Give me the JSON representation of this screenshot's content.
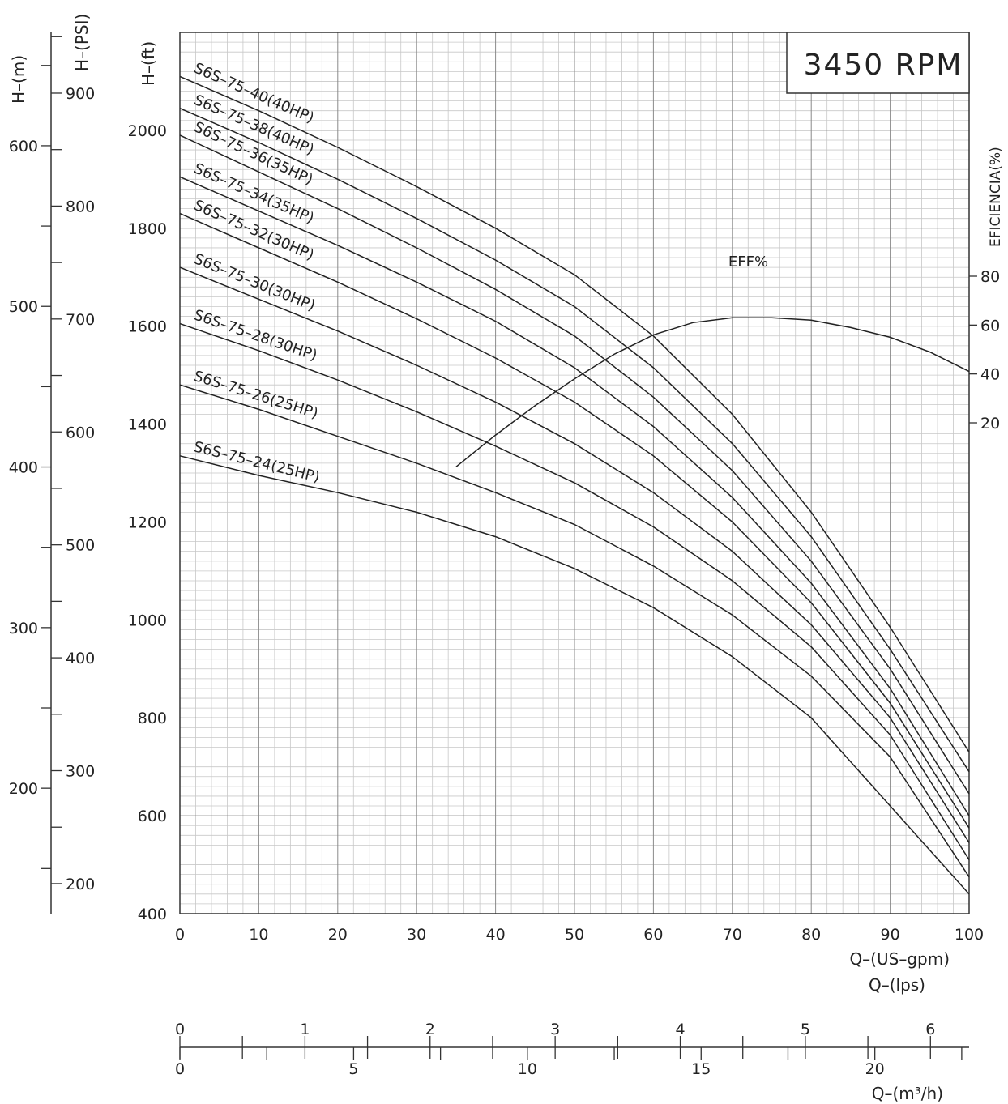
{
  "chart_data": {
    "type": "line",
    "rpm_label": "3450 RPM",
    "x_axis": {
      "label_gpm": "Q–(US–gpm)",
      "label_lps": "Q–(lps)",
      "label_m3h": "Q–(m³/h)",
      "range": [
        0,
        100
      ],
      "ticks": [
        0,
        10,
        20,
        30,
        40,
        50,
        60,
        70,
        80,
        90,
        100
      ],
      "lps_ticks": [
        0,
        1,
        2,
        3,
        4,
        5,
        6
      ],
      "m3h_ticks": [
        0,
        5,
        10,
        15,
        20
      ]
    },
    "y_axis": {
      "label_ft": "H–(ft)",
      "label_m": "H–(m)",
      "label_psi": "H–(PSI)",
      "range": [
        400,
        2200
      ],
      "ticks": [
        400,
        600,
        800,
        1000,
        1200,
        1400,
        1600,
        1800,
        2000
      ],
      "m_ticks": [
        200,
        300,
        400,
        500,
        600
      ],
      "psi_ticks": [
        200,
        300,
        400,
        500,
        600,
        700,
        800,
        900
      ]
    },
    "eff_axis": {
      "label": "EFICIENCIA(%)",
      "ticks": [
        20,
        40,
        60,
        80
      ]
    },
    "series": [
      {
        "name": "S6S–75–40(40HP)",
        "x": [
          0,
          10,
          20,
          30,
          40,
          50,
          60,
          70,
          80,
          90,
          100
        ],
        "y": [
          2110,
          2040,
          1965,
          1885,
          1800,
          1705,
          1580,
          1420,
          1220,
          985,
          730
        ]
      },
      {
        "name": "S6S–75–38(40HP)",
        "x": [
          0,
          10,
          20,
          30,
          40,
          50,
          60,
          70,
          80,
          90,
          100
        ],
        "y": [
          2045,
          1975,
          1900,
          1820,
          1735,
          1640,
          1515,
          1360,
          1170,
          940,
          690
        ]
      },
      {
        "name": "S6S–75–36(35HP)",
        "x": [
          0,
          10,
          20,
          30,
          40,
          50,
          60,
          70,
          80,
          90,
          100
        ],
        "y": [
          1990,
          1915,
          1840,
          1760,
          1675,
          1580,
          1455,
          1305,
          1120,
          900,
          645
        ]
      },
      {
        "name": "S6S–75–34(35HP)",
        "x": [
          0,
          10,
          20,
          30,
          40,
          50,
          60,
          70,
          80,
          90,
          100
        ],
        "y": [
          1905,
          1835,
          1765,
          1690,
          1610,
          1515,
          1395,
          1250,
          1075,
          860,
          600
        ]
      },
      {
        "name": "S6S–75–32(30HP)",
        "x": [
          0,
          10,
          20,
          30,
          40,
          50,
          60,
          70,
          80,
          90,
          100
        ],
        "y": [
          1830,
          1760,
          1690,
          1615,
          1535,
          1445,
          1335,
          1200,
          1035,
          830,
          575
        ]
      },
      {
        "name": "S6S–75–30(30HP)",
        "x": [
          0,
          10,
          20,
          30,
          40,
          50,
          60,
          70,
          80,
          90,
          100
        ],
        "y": [
          1720,
          1655,
          1590,
          1520,
          1445,
          1360,
          1260,
          1140,
          990,
          800,
          545
        ]
      },
      {
        "name": "S6S–75–28(30HP)",
        "x": [
          0,
          10,
          20,
          30,
          40,
          50,
          60,
          70,
          80,
          90,
          100
        ],
        "y": [
          1605,
          1550,
          1490,
          1425,
          1355,
          1280,
          1190,
          1080,
          945,
          765,
          510
        ]
      },
      {
        "name": "S6S–75–26(25HP)",
        "x": [
          0,
          10,
          20,
          30,
          40,
          50,
          60,
          70,
          80,
          90,
          100
        ],
        "y": [
          1480,
          1430,
          1375,
          1320,
          1260,
          1195,
          1110,
          1010,
          885,
          720,
          475
        ]
      },
      {
        "name": "S6S–75–24(25HP)",
        "x": [
          0,
          10,
          20,
          30,
          40,
          50,
          60,
          70,
          80,
          90,
          100
        ],
        "y": [
          1335,
          1295,
          1260,
          1220,
          1170,
          1105,
          1025,
          925,
          800,
          620,
          440
        ]
      }
    ],
    "efficiency": {
      "name": "EFF%",
      "x": [
        35,
        40,
        45,
        50,
        55,
        60,
        65,
        70,
        75,
        80,
        85,
        90,
        95,
        100
      ],
      "eff": [
        2,
        15,
        27,
        38,
        48,
        56,
        61,
        63,
        63,
        62,
        59,
        55,
        49,
        41
      ]
    },
    "grid": true
  }
}
